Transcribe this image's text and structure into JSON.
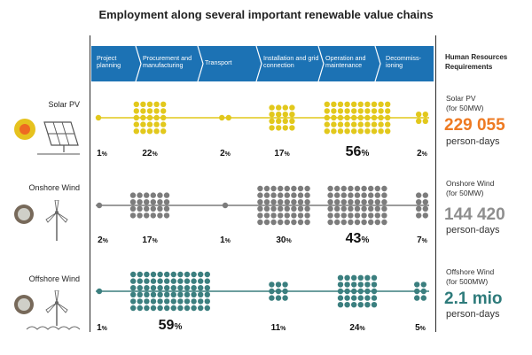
{
  "title": "Employment along several important renewable value chains",
  "stages": [
    "Project planning",
    "Procurement and manufacturing",
    "Transport",
    "Installation and grid connection",
    "Operation and maintenance",
    "Decommiss-ioning"
  ],
  "hr_header": "Human Resources Requirements",
  "rows": [
    {
      "label": "Solar PV",
      "color": "#e2c81c",
      "icon": "solar-panel-icon",
      "percents": [
        "1",
        "22",
        "2",
        "17",
        "56",
        "2"
      ],
      "hr_name": "Solar PV",
      "hr_capacity": "(for 50MW)",
      "hr_value": "229 055",
      "hr_value_color": "#ee7a22",
      "hr_unit": "person-days"
    },
    {
      "label": "Onshore Wind",
      "color": "#7c7c7c",
      "icon": "wind-turbine-icon",
      "percents": [
        "2",
        "17",
        "1",
        "30",
        "43",
        "7"
      ],
      "hr_name": "Onshore Wind",
      "hr_capacity": "(for 50MW)",
      "hr_value": "144 420",
      "hr_value_color": "#8e8e8e",
      "hr_unit": "person-days"
    },
    {
      "label": "Offshore Wind",
      "color": "#3b7f7f",
      "icon": "offshore-wind-turbine-icon",
      "percents": [
        "1",
        "59",
        "",
        "11",
        "24",
        "5"
      ],
      "hr_name": "Offshore Wind",
      "hr_capacity": "(for 500MW)",
      "hr_value": "2.1 mio",
      "hr_value_color": "#2e7b7b",
      "hr_unit": "person-days"
    }
  ],
  "percent_sign": "%"
}
